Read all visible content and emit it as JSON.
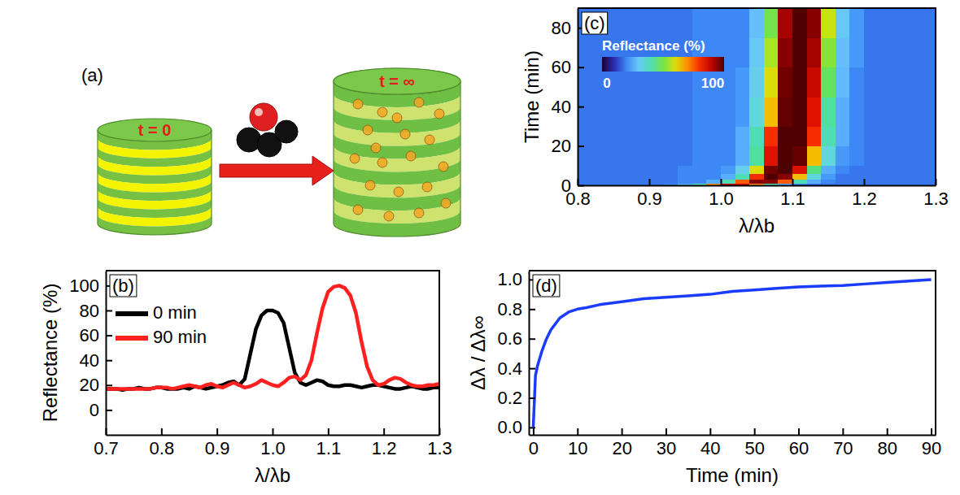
{
  "diagram": {
    "label": "(a)",
    "before": "t = 0",
    "after": "t = ∞"
  },
  "chart_data": [
    {
      "type": "line",
      "title": "(b)",
      "x_label": "λ/λb",
      "y_label": "Reflectance (%)",
      "xlim": [
        0.7,
        1.3
      ],
      "xticks": [
        0.7,
        0.8,
        0.9,
        {
          "value": 1,
          "label": "1.0"
        },
        1.1,
        1.2,
        1.3
      ],
      "ylim": [
        -20,
        112
      ],
      "yticks": [
        0,
        20,
        40,
        60,
        80,
        100
      ],
      "legend": "upper left",
      "x": [
        0.7,
        0.71,
        0.72,
        0.73,
        0.74,
        0.75,
        0.76,
        0.77,
        0.78,
        0.79,
        0.8,
        0.81,
        0.82,
        0.83,
        0.84,
        0.85,
        0.86,
        0.87,
        0.88,
        0.89,
        0.9,
        0.91,
        0.92,
        0.93,
        0.94,
        0.95,
        0.96,
        0.97,
        0.98,
        0.99,
        1,
        1.01,
        1.02,
        1.03,
        1.04,
        1.05,
        1.06,
        1.07,
        1.08,
        1.09,
        1.1,
        1.11,
        1.12,
        1.13,
        1.14,
        1.15,
        1.16,
        1.17,
        1.18,
        1.19,
        1.2,
        1.21,
        1.22,
        1.23,
        1.24,
        1.25,
        1.26,
        1.27,
        1.28,
        1.29,
        1.3
      ],
      "series": [
        {
          "name": "0 min",
          "color": "#000000",
          "values": [
            17,
            17,
            17,
            16,
            17,
            17,
            18,
            17,
            17,
            18,
            18,
            17,
            17,
            17,
            18,
            17,
            19,
            18,
            17,
            18,
            19,
            20,
            22,
            23,
            20,
            25,
            45,
            65,
            76,
            80,
            80,
            78,
            70,
            50,
            30,
            22,
            20,
            22,
            24,
            23,
            20,
            19,
            19,
            20,
            20,
            19,
            18,
            19,
            20,
            20,
            19,
            18,
            17,
            17,
            18,
            19,
            18,
            17,
            17,
            18,
            18
          ]
        },
        {
          "name": "90 min",
          "color": "#ff2020",
          "values": [
            17,
            17,
            17,
            17,
            17,
            17,
            17,
            17,
            17,
            18,
            18,
            18,
            17,
            18,
            19,
            20,
            19,
            18,
            20,
            21,
            19,
            18,
            20,
            22,
            20,
            18,
            19,
            21,
            24,
            22,
            20,
            19,
            22,
            26,
            27,
            24,
            28,
            40,
            62,
            82,
            95,
            99,
            100,
            98,
            92,
            78,
            55,
            35,
            24,
            20,
            21,
            24,
            26,
            25,
            22,
            20,
            19,
            19,
            20,
            20,
            21
          ]
        }
      ]
    },
    {
      "type": "heatmap",
      "title": "(c)",
      "x_label": "λ/λb",
      "y_label": "Time (min)",
      "xlim": [
        0.8,
        1.3
      ],
      "xticks": [
        0.8,
        0.9,
        {
          "value": 1,
          "label": "1.0"
        },
        1.1,
        1.2,
        1.3
      ],
      "ylim": [
        0,
        90
      ],
      "yticks": [
        0,
        20,
        40,
        60,
        80
      ],
      "x_edges": [
        0.8,
        0.82,
        0.84,
        0.86,
        0.88,
        0.9,
        0.92,
        0.94,
        0.96,
        0.98,
        1,
        1.02,
        1.04,
        1.06,
        1.08,
        1.1,
        1.12,
        1.14,
        1.16,
        1.18,
        1.2,
        1.22,
        1.24,
        1.26,
        1.28,
        1.3
      ],
      "y_edges": [
        0,
        1,
        3,
        6,
        10,
        20,
        30,
        45,
        60,
        75,
        90
      ],
      "cells": [
        [
          18,
          18,
          18,
          18,
          18,
          18,
          20,
          25,
          40,
          70,
          88,
          88,
          70,
          40,
          25,
          20,
          18,
          18,
          18,
          18,
          18,
          18,
          18,
          18,
          18
        ],
        [
          18,
          18,
          18,
          18,
          18,
          18,
          18,
          20,
          20,
          25,
          40,
          75,
          95,
          95,
          75,
          40,
          25,
          20,
          18,
          18,
          18,
          18,
          18,
          18,
          18
        ],
        [
          18,
          18,
          18,
          18,
          18,
          18,
          18,
          20,
          20,
          20,
          25,
          40,
          80,
          100,
          95,
          65,
          35,
          22,
          18,
          18,
          18,
          18,
          18,
          18,
          18
        ],
        [
          18,
          18,
          18,
          18,
          18,
          18,
          18,
          20,
          20,
          20,
          22,
          32,
          60,
          97,
          100,
          85,
          45,
          25,
          20,
          18,
          18,
          18,
          18,
          18,
          18
        ],
        [
          18,
          18,
          18,
          18,
          18,
          18,
          18,
          18,
          20,
          20,
          20,
          25,
          42,
          85,
          100,
          98,
          65,
          35,
          22,
          20,
          18,
          18,
          18,
          18,
          18
        ],
        [
          18,
          18,
          18,
          18,
          18,
          18,
          18,
          18,
          20,
          20,
          20,
          25,
          40,
          80,
          100,
          100,
          80,
          40,
          25,
          20,
          18,
          18,
          18,
          18,
          18
        ],
        [
          18,
          18,
          18,
          18,
          18,
          18,
          18,
          18,
          20,
          20,
          20,
          22,
          35,
          65,
          98,
          100,
          85,
          42,
          25,
          20,
          18,
          18,
          18,
          18,
          18
        ],
        [
          18,
          18,
          18,
          18,
          18,
          18,
          18,
          18,
          20,
          20,
          20,
          22,
          32,
          60,
          97,
          100,
          88,
          48,
          27,
          20,
          18,
          18,
          18,
          18,
          18
        ],
        [
          18,
          18,
          18,
          18,
          18,
          18,
          18,
          18,
          20,
          20,
          20,
          20,
          30,
          55,
          95,
          100,
          92,
          52,
          28,
          22,
          18,
          18,
          18,
          18,
          18
        ],
        [
          18,
          18,
          18,
          18,
          18,
          18,
          18,
          18,
          20,
          20,
          20,
          20,
          28,
          50,
          92,
          100,
          95,
          58,
          30,
          22,
          18,
          18,
          18,
          18,
          18
        ]
      ],
      "colorbar": {
        "label": "Reflectance (%)",
        "range": [
          0,
          100
        ],
        "ticks": [
          0,
          100
        ]
      }
    },
    {
      "type": "line",
      "title": "(d)",
      "x_label": "Time (min)",
      "y_label": "Δλ / Δλ∞",
      "xlim": [
        -1,
        91
      ],
      "xticks": [
        0,
        10,
        20,
        30,
        40,
        50,
        60,
        70,
        80,
        90
      ],
      "ylim": [
        -0.05,
        1.06
      ],
      "yticks": [
        {
          "value": 0,
          "label": "0.0"
        },
        0.2,
        0.4,
        0.6,
        0.8,
        {
          "value": 1,
          "label": "1.0"
        }
      ],
      "x": [
        0,
        0.5,
        1,
        2,
        3,
        4,
        5,
        6,
        8,
        10,
        12,
        15,
        20,
        25,
        30,
        35,
        40,
        45,
        50,
        55,
        60,
        65,
        70,
        75,
        80,
        85,
        90
      ],
      "series": [
        {
          "color": "#1a3cff",
          "values": [
            0,
            0.35,
            0.42,
            0.52,
            0.6,
            0.66,
            0.7,
            0.74,
            0.78,
            0.8,
            0.81,
            0.83,
            0.85,
            0.87,
            0.88,
            0.89,
            0.9,
            0.92,
            0.93,
            0.94,
            0.95,
            0.955,
            0.96,
            0.97,
            0.98,
            0.99,
            1
          ]
        }
      ]
    }
  ]
}
